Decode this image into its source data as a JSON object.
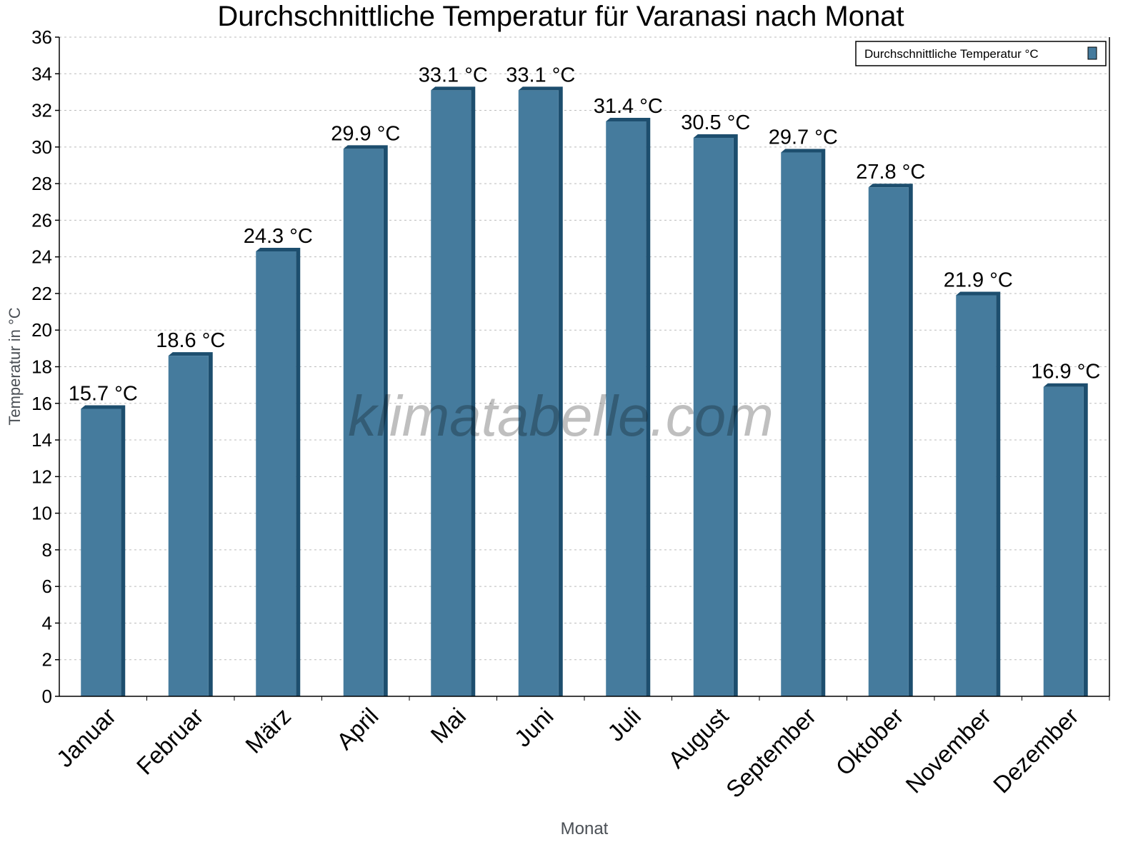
{
  "chart_data": {
    "type": "bar",
    "title": "Durchschnittliche Temperatur für Varanasi nach Monat",
    "xlabel": "Monat",
    "ylabel": "Temperatur in °C",
    "ylim": [
      0,
      36
    ],
    "yticks": [
      0,
      2,
      4,
      6,
      8,
      10,
      12,
      14,
      16,
      18,
      20,
      22,
      24,
      26,
      28,
      30,
      32,
      34,
      36
    ],
    "grid": true,
    "legend_position": "top-right",
    "categories": [
      "Januar",
      "Februar",
      "März",
      "April",
      "Mai",
      "Juni",
      "Juli",
      "August",
      "September",
      "Oktober",
      "November",
      "Dezember"
    ],
    "series": [
      {
        "name": "Durchschnittliche Temperatur °C",
        "values": [
          15.7,
          18.6,
          24.3,
          29.9,
          33.1,
          33.1,
          31.4,
          30.5,
          29.7,
          27.8,
          21.9,
          16.9
        ],
        "labels": [
          "15.7 °C",
          "18.6 °C",
          "24.3 °C",
          "29.9 °C",
          "33.1 °C",
          "33.1 °C",
          "31.4 °C",
          "30.5 °C",
          "29.7 °C",
          "27.8 °C",
          "21.9 °C",
          "16.9 °C"
        ],
        "color": "#457b9d",
        "side_color": "#1d4e6e"
      }
    ],
    "watermark": "klimatabelle.com"
  }
}
